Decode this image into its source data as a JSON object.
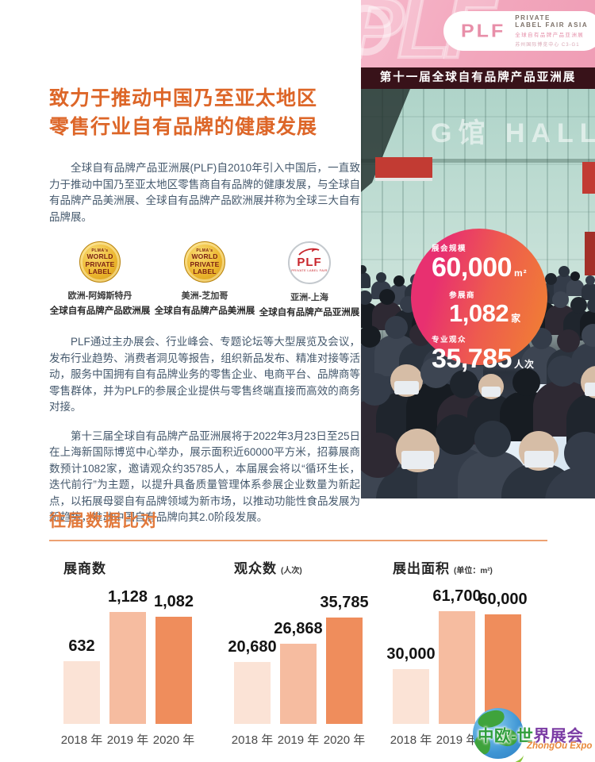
{
  "header": {
    "title_line1": "致力于推动中国乃至亚太地区",
    "title_line2": "零售行业自有品牌的健康发展"
  },
  "paragraphs": [
    "全球自有品牌产品亚洲展(PLF)自2010年引入中国后，一直致力于推动中国乃至亚太地区零售商自有品牌的健康发展，与全球自有品牌产品美洲展、全球自有品牌产品欧洲展并称为全球三大自有品牌展。",
    "PLF通过主办展会、行业峰会、专题论坛等大型展览及会议，发布行业趋势、消费者洞见等报告，组织新品发布、精准对接等活动，服务中国拥有自有品牌业务的零售企业、电商平台、品牌商等零售群体，并为PLF的参展企业提供与零售终端直接而高效的商务对接。",
    "第十三届全球自有品牌产品亚洲展将于2022年3月23日至25日在上海新国际博览中心举办，展示面积近60000平方米，招募展商数预计1082家，邀请观众约35785人，本届展会将以“循环生长，迭代前行”为主题，以提升具备质量管理体系参展企业数量为新起点，以拓展母婴自有品牌领域为新市场，以推动功能性食品发展为新趋势，推动中国自有品牌向其2.0阶段发展。"
  ],
  "logos": [
    {
      "lines": [
        "PLMA's",
        "WORLD",
        "PRIVATE",
        "LABEL"
      ],
      "caption_line1": "欧洲-阿姆斯特丹",
      "caption_line2": "全球自有品牌产品欧洲展"
    },
    {
      "lines": [
        "PLMA's",
        "WORLD",
        "PRIVATE",
        "LABEL"
      ],
      "caption_line1": "美洲-芝加哥",
      "caption_line2": "全球自有品牌产品美洲展"
    },
    {
      "logo": "PLF",
      "sub": "PRIVATE LABEL FAIR",
      "caption_line1": "亚洲-上海",
      "caption_line2": "全球自有品牌产品亚洲展"
    }
  ],
  "photo": {
    "banner_ghost": "PLF",
    "pill": {
      "logo": "PLF",
      "line1": "PRIVATE",
      "line2": "LABEL FAIR ASIA",
      "line3": "全球自有品牌产品亚洲展",
      "line4": "苏州国际博览中心 C3-G1"
    },
    "strip_title": "第十一届全球自有品牌产品亚洲展",
    "hall_text": "G馆 HALL",
    "stats": [
      {
        "label": "展会规模",
        "value": "60,000",
        "unit": "m²"
      },
      {
        "label": "参展商",
        "value": "1,082",
        "unit": "家"
      },
      {
        "label": "专业观众",
        "value": "35,785",
        "unit": "人次"
      }
    ]
  },
  "section": {
    "title": "往届数据比对"
  },
  "chart_data": [
    {
      "type": "bar",
      "title": "展商数",
      "unit": "",
      "categories": [
        "2018 年",
        "2019 年",
        "2020 年"
      ],
      "values": [
        632,
        1128,
        1082
      ],
      "value_labels": [
        "632",
        "1,128",
        "1,082"
      ],
      "ylim": [
        0,
        1200
      ],
      "grid": false,
      "legend": "none",
      "bar_colors": [
        "#FBE3D6",
        "#F6BCA0",
        "#EF8D5C"
      ]
    },
    {
      "type": "bar",
      "title": "观众数",
      "unit": "(人次)",
      "categories": [
        "2018 年",
        "2019 年",
        "2020 年"
      ],
      "values": [
        20680,
        26868,
        35785
      ],
      "value_labels": [
        "20,680",
        "26,868",
        "35,785"
      ],
      "ylim": [
        0,
        40000
      ],
      "grid": false,
      "legend": "none",
      "bar_colors": [
        "#FBE3D6",
        "#F6BCA0",
        "#EF8D5C"
      ]
    },
    {
      "type": "bar",
      "title": "展出面积",
      "unit": "(单位：m²)",
      "categories": [
        "2018 年",
        "2019 年",
        "2020 年"
      ],
      "values": [
        30000,
        61700,
        60000
      ],
      "value_labels": [
        "30,000",
        "61,700",
        "60,000"
      ],
      "ylim": [
        0,
        65000
      ],
      "grid": false,
      "legend": "none",
      "bar_colors": [
        "#FBE3D6",
        "#F6BCA0",
        "#EF8D5C"
      ]
    }
  ],
  "watermark": {
    "cn_part1": "中欧-世",
    "cn_part2": "界展会",
    "en": "ZhongOu Expo"
  },
  "colors": {
    "title_orange": "#DD6628",
    "section_orange": "#E2793B",
    "body_text": "#44586C",
    "circle_pink": "#E83070",
    "circle_orange": "#F07C36",
    "strip_bg": "#381219",
    "banner_pink": "#F2A6BC",
    "bar_light": "#FBE3D6",
    "bar_mid": "#F6BCA0",
    "bar_dark": "#EF8D5C"
  }
}
